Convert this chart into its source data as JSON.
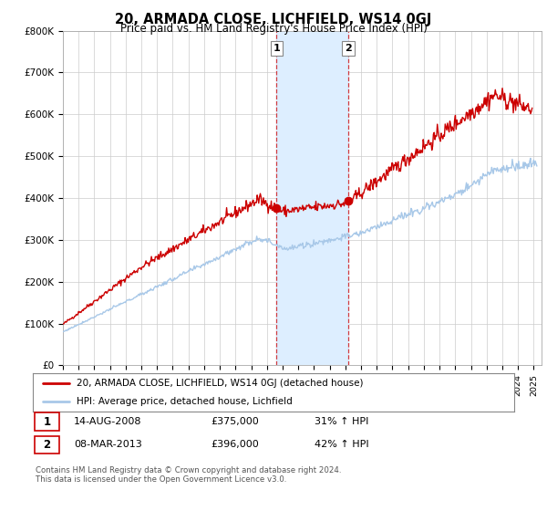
{
  "title": "20, ARMADA CLOSE, LICHFIELD, WS14 0GJ",
  "subtitle": "Price paid vs. HM Land Registry's House Price Index (HPI)",
  "ylabel_ticks": [
    "£0",
    "£100K",
    "£200K",
    "£300K",
    "£400K",
    "£500K",
    "£600K",
    "£700K",
    "£800K"
  ],
  "ylim": [
    0,
    800000
  ],
  "xlim_start": 1995.0,
  "xlim_end": 2025.5,
  "sale1_date": 2008.62,
  "sale1_price": 375000,
  "sale1_label": "1",
  "sale2_date": 2013.18,
  "sale2_price": 396000,
  "sale2_label": "2",
  "hpi_color": "#a8c8e8",
  "property_color": "#cc0000",
  "sale_marker_color": "#cc0000",
  "shaded_region_color": "#ddeeff",
  "legend_property": "20, ARMADA CLOSE, LICHFIELD, WS14 0GJ (detached house)",
  "legend_hpi": "HPI: Average price, detached house, Lichfield",
  "table_row1": [
    "1",
    "14-AUG-2008",
    "£375,000",
    "31% ↑ HPI"
  ],
  "table_row2": [
    "2",
    "08-MAR-2013",
    "£396,000",
    "42% ↑ HPI"
  ],
  "footnote": "Contains HM Land Registry data © Crown copyright and database right 2024.\nThis data is licensed under the Open Government Licence v3.0.",
  "background_color": "#ffffff",
  "grid_color": "#cccccc"
}
